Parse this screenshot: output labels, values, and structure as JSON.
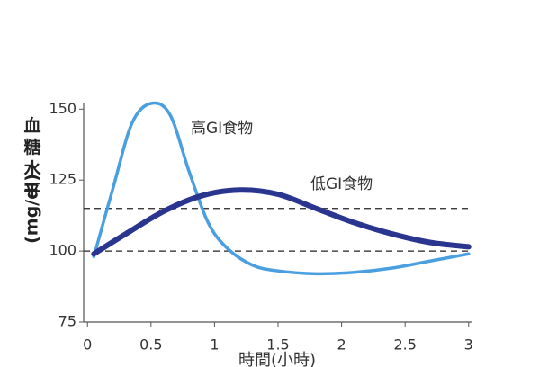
{
  "chart_data": {
    "type": "line",
    "y_label": "血糖水平",
    "y_unit": "(mg/dl)",
    "x_label": "時間(小時)",
    "xlim": [
      -0.03,
      3.03
    ],
    "xticks": [
      0,
      0.5,
      1,
      1.5,
      2,
      2.5,
      3
    ],
    "ylim": [
      75,
      152
    ],
    "yticks": [
      75,
      100,
      125,
      150
    ],
    "hlines": [
      100,
      115
    ],
    "series": [
      {
        "name": "高GI食物",
        "color": "#4a9fe0",
        "x": [
          0.05,
          0.2,
          0.35,
          0.5,
          0.65,
          0.8,
          0.95,
          1.1,
          1.3,
          1.5,
          1.8,
          2.1,
          2.4,
          2.7,
          3.0
        ],
        "values": [
          98,
          122,
          145,
          152,
          148,
          128,
          110,
          101,
          95,
          93,
          92,
          92.5,
          94,
          96.5,
          99
        ]
      },
      {
        "name": "低GI食物",
        "color": "#2a3590",
        "x": [
          0.05,
          0.3,
          0.6,
          0.9,
          1.2,
          1.5,
          1.8,
          2.1,
          2.4,
          2.7,
          3.0
        ],
        "values": [
          99,
          106,
          114,
          119.5,
          121.5,
          120,
          115,
          110,
          106,
          103,
          101.5
        ]
      }
    ]
  }
}
